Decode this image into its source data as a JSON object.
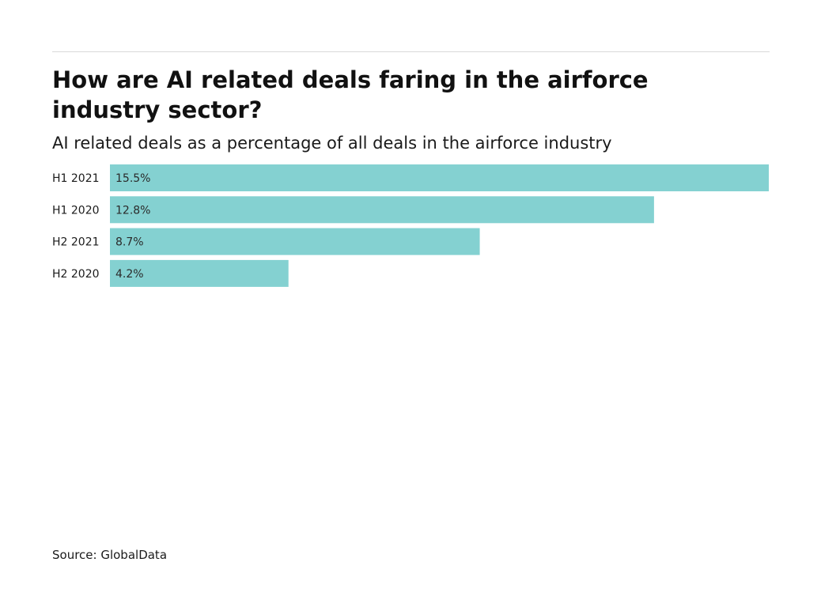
{
  "header": {
    "title": "How are AI related deals faring in the airforce industry sector?",
    "subtitle": "AI related deals as a percentage of all deals in the airforce industry"
  },
  "footer": {
    "source": "Source: GlobalData"
  },
  "chart_data": {
    "type": "bar",
    "orientation": "horizontal",
    "categories": [
      "H1 2021",
      "H1 2020",
      "H2 2021",
      "H2 2020"
    ],
    "values": [
      15.5,
      12.8,
      8.7,
      4.2
    ],
    "value_labels": [
      "15.5%",
      "12.8%",
      "8.7%",
      "4.2%"
    ],
    "unit": "%",
    "xlim": [
      0,
      15.5
    ],
    "grid": false,
    "legend": "none",
    "bar_color": "#84d1d1"
  }
}
